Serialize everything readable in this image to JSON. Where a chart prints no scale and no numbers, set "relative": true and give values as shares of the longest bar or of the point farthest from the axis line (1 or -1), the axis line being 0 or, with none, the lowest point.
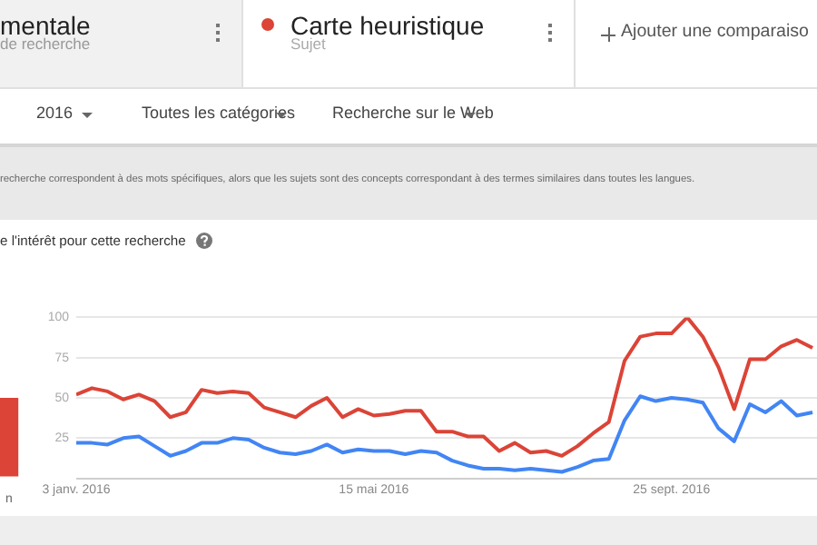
{
  "chart_data": [
    {
      "type": "other",
      "annotations": [
        "mentale",
        "de recherche",
        "Carte heuristique",
        "Sujet",
        "Ajouter une comparaiso",
        "2016",
        "Toutes les catégories",
        "Recherche sur le Web",
        "recherche correspondent à des mots spécifiques, alors que les sujets sont des concepts correspondant à des termes similaires dans toutes les langues."
      ]
    },
    {
      "type": "bar",
      "relative": true,
      "categories": [
        "n"
      ],
      "values": [
        1
      ],
      "color": "#db4437"
    },
    {
      "type": "line",
      "title": "e l'intérêt pour cette recherche",
      "x": [
        "2016-01-03",
        "2016-01-10",
        "2016-01-17",
        "2016-01-24",
        "2016-01-31",
        "2016-02-07",
        "2016-02-14",
        "2016-02-21",
        "2016-02-28",
        "2016-03-06",
        "2016-03-13",
        "2016-03-20",
        "2016-03-27",
        "2016-04-03",
        "2016-04-10",
        "2016-04-17",
        "2016-04-24",
        "2016-05-01",
        "2016-05-08",
        "2016-05-15",
        "2016-05-22",
        "2016-05-29",
        "2016-06-05",
        "2016-06-12",
        "2016-06-19",
        "2016-06-26",
        "2016-07-03",
        "2016-07-10",
        "2016-07-17",
        "2016-07-24",
        "2016-07-31",
        "2016-08-07",
        "2016-08-14",
        "2016-08-21",
        "2016-08-28",
        "2016-09-04",
        "2016-09-11",
        "2016-09-18",
        "2016-09-25",
        "2016-10-02",
        "2016-10-09",
        "2016-10-16",
        "2016-10-23",
        "2016-10-30",
        "2016-11-06",
        "2016-11-13",
        "2016-11-20",
        "2016-11-27"
      ],
      "series": [
        {
          "color": "#db4437",
          "values": [
            52,
            56,
            54,
            49,
            52,
            48,
            38,
            41,
            55,
            53,
            54,
            53,
            44,
            41,
            38,
            45,
            50,
            38,
            43,
            39,
            40,
            42,
            42,
            29,
            29,
            26,
            26,
            17,
            22,
            16,
            17,
            14,
            20,
            28,
            35,
            73,
            88,
            90,
            90,
            100,
            88,
            69,
            43,
            74,
            74,
            82,
            86,
            81
          ]
        },
        {
          "color": "#4285f4",
          "values": [
            22,
            22,
            21,
            25,
            26,
            20,
            14,
            17,
            22,
            22,
            25,
            24,
            19,
            16,
            15,
            17,
            21,
            16,
            18,
            17,
            17,
            15,
            17,
            16,
            11,
            8,
            6,
            6,
            5,
            6,
            5,
            4,
            7,
            11,
            12,
            36,
            51,
            48,
            50,
            49,
            47,
            31,
            23,
            46,
            41,
            48,
            39,
            41
          ]
        }
      ],
      "xlim": [
        "2016-01-03",
        "2016-11-29"
      ],
      "xticks": [
        {
          "value": "2016-01-03",
          "label": "3 janv. 2016"
        },
        {
          "value": "2016-05-15",
          "label": "15 mai 2016"
        },
        {
          "value": "2016-09-25",
          "label": "25 sept. 2016"
        }
      ],
      "ylim": [
        0,
        100
      ],
      "yticks": [
        {
          "value": 0,
          "label": null
        },
        25,
        50,
        75,
        100
      ],
      "grid": "y",
      "marker": "none",
      "line_style": "solid"
    }
  ]
}
